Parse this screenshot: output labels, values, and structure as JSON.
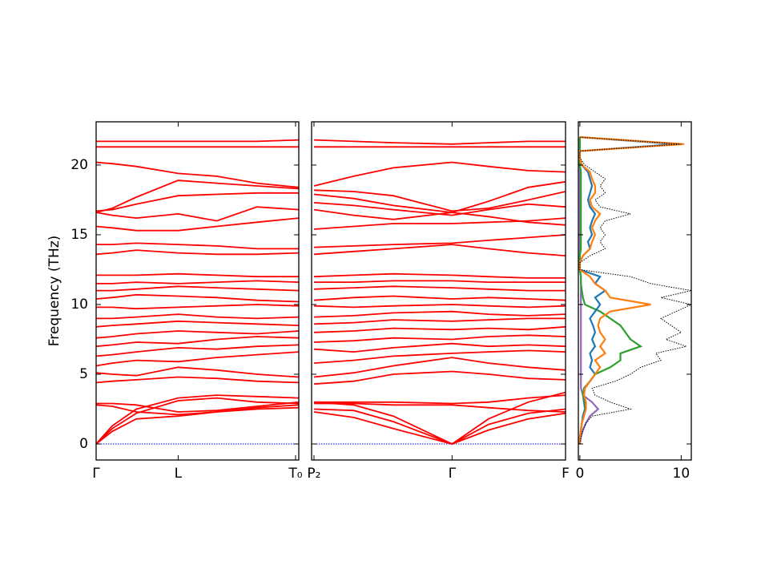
{
  "chart_data": [
    {
      "type": "bands",
      "ylabel": "Frequency (THz)",
      "color": "#ff0000",
      "hline": 0,
      "hline_color": "#0000ff",
      "xlim": [
        0,
        1.26
      ],
      "xticks": [
        {
          "value": 0,
          "label": "Γ"
        },
        {
          "value": 0.51,
          "label": "L"
        },
        {
          "value": 1.24,
          "label": "T₀"
        }
      ],
      "ylim": [
        -1.15,
        23.1
      ],
      "yticks": [
        0,
        5,
        10,
        15,
        20
      ],
      "ytick_labels": true,
      "x": [
        0,
        0.1,
        0.25,
        0.51,
        0.75,
        1.0,
        1.26
      ],
      "bands": [
        [
          0,
          0.9,
          1.8,
          2.0,
          2.3,
          2.6,
          2.8
        ],
        [
          0,
          1.1,
          2.2,
          3.1,
          3.3,
          3.0,
          2.9
        ],
        [
          0,
          1.3,
          2.5,
          3.3,
          3.5,
          3.4,
          3.3
        ],
        [
          2.8,
          2.7,
          2.3,
          2.1,
          2.3,
          2.5,
          2.6
        ],
        [
          2.9,
          2.9,
          2.8,
          2.3,
          2.4,
          2.7,
          3.0
        ],
        [
          4.4,
          4.5,
          4.6,
          4.8,
          4.7,
          4.5,
          4.4
        ],
        [
          5.1,
          5.0,
          4.9,
          5.5,
          5.3,
          5.0,
          4.8
        ],
        [
          5.6,
          5.8,
          6.0,
          5.9,
          6.2,
          6.4,
          6.6
        ],
        [
          6.3,
          6.4,
          6.6,
          6.9,
          6.8,
          7.0,
          7.1
        ],
        [
          7.0,
          7.1,
          7.3,
          7.2,
          7.5,
          7.7,
          7.6
        ],
        [
          7.6,
          7.7,
          7.9,
          8.1,
          8.0,
          7.9,
          8.1
        ],
        [
          8.4,
          8.5,
          8.6,
          8.8,
          8.7,
          8.6,
          8.5
        ],
        [
          9.0,
          9.0,
          9.1,
          9.3,
          9.1,
          9.0,
          9.1
        ],
        [
          9.8,
          9.8,
          9.7,
          9.8,
          9.9,
          10.0,
          9.9
        ],
        [
          10.4,
          10.5,
          10.7,
          10.6,
          10.5,
          10.3,
          10.2
        ],
        [
          11.0,
          11.0,
          11.1,
          11.3,
          11.2,
          11.1,
          11.0
        ],
        [
          11.5,
          11.5,
          11.6,
          11.5,
          11.6,
          11.7,
          11.6
        ],
        [
          12.1,
          12.1,
          12.1,
          12.2,
          12.1,
          12.0,
          12.0
        ],
        [
          13.6,
          13.7,
          13.9,
          13.7,
          13.6,
          13.6,
          13.7
        ],
        [
          14.3,
          14.3,
          14.4,
          14.3,
          14.2,
          14.0,
          14.0
        ],
        [
          15.6,
          15.5,
          15.3,
          15.3,
          15.6,
          15.9,
          16.2
        ],
        [
          16.6,
          16.4,
          16.2,
          16.5,
          16.0,
          17.0,
          16.8
        ],
        [
          16.7,
          16.8,
          17.2,
          17.8,
          17.9,
          18.0,
          18.0
        ],
        [
          16.6,
          16.9,
          17.7,
          18.9,
          18.7,
          18.5,
          18.3
        ],
        [
          20.2,
          20.1,
          19.9,
          19.4,
          19.2,
          18.7,
          18.4
        ],
        [
          21.3,
          21.3,
          21.3,
          21.3,
          21.3,
          21.3,
          21.3
        ],
        [
          21.7,
          21.7,
          21.7,
          21.7,
          21.7,
          21.7,
          21.8
        ]
      ]
    },
    {
      "type": "bands",
      "color": "#ff0000",
      "hline": 0,
      "hline_color": "#0000ff",
      "xlim": [
        -0.015,
        1.585
      ],
      "xticks": [
        {
          "value": 0,
          "label": "P₂"
        },
        {
          "value": 0.87,
          "label": "Γ"
        },
        {
          "value": 1.585,
          "label": "F"
        }
      ],
      "ylim": [
        -1.15,
        23.1
      ],
      "yticks": [
        0,
        5,
        10,
        15,
        20
      ],
      "ytick_labels": false,
      "x": [
        0,
        0.25,
        0.5,
        0.87,
        1.1,
        1.35,
        1.585
      ],
      "bands": [
        [
          2.3,
          1.9,
          1.1,
          0,
          1.0,
          1.8,
          2.2
        ],
        [
          2.5,
          2.4,
          1.6,
          0,
          1.4,
          2.2,
          2.5
        ],
        [
          3.0,
          2.8,
          2.0,
          0,
          1.8,
          3.0,
          3.7
        ],
        [
          2.9,
          2.9,
          2.8,
          2.8,
          2.6,
          2.4,
          2.3
        ],
        [
          3.0,
          3.0,
          3.0,
          2.9,
          3.0,
          3.3,
          3.5
        ],
        [
          4.3,
          4.5,
          5.0,
          5.2,
          5.0,
          4.7,
          4.6
        ],
        [
          4.8,
          5.1,
          5.6,
          6.2,
          5.8,
          5.5,
          5.3
        ],
        [
          5.8,
          6.0,
          6.3,
          6.5,
          6.6,
          6.7,
          6.6
        ],
        [
          6.8,
          6.6,
          6.9,
          7.2,
          7.0,
          7.1,
          7.0
        ],
        [
          7.3,
          7.4,
          7.6,
          7.5,
          7.7,
          7.8,
          7.7
        ],
        [
          8.0,
          8.1,
          8.3,
          8.2,
          8.3,
          8.2,
          8.4
        ],
        [
          8.6,
          8.7,
          8.9,
          8.8,
          8.9,
          9.0,
          9.0
        ],
        [
          9.1,
          9.2,
          9.4,
          9.5,
          9.3,
          9.2,
          9.3
        ],
        [
          9.9,
          9.8,
          9.9,
          10.0,
          9.9,
          9.8,
          9.9
        ],
        [
          10.3,
          10.5,
          10.6,
          10.4,
          10.5,
          10.4,
          10.3
        ],
        [
          11.1,
          11.2,
          11.3,
          11.2,
          11.1,
          11.0,
          11.0
        ],
        [
          11.6,
          11.6,
          11.7,
          11.7,
          11.6,
          11.6,
          11.6
        ],
        [
          12.0,
          12.1,
          12.2,
          12.1,
          12.0,
          11.9,
          11.9
        ],
        [
          13.6,
          13.8,
          14.0,
          14.3,
          14.0,
          13.7,
          13.5
        ],
        [
          14.1,
          14.2,
          14.3,
          14.4,
          14.6,
          14.8,
          15.0
        ],
        [
          15.4,
          15.6,
          15.8,
          15.8,
          15.9,
          16.0,
          16.2
        ],
        [
          16.8,
          16.4,
          16.1,
          16.6,
          16.3,
          15.9,
          15.7
        ],
        [
          17.3,
          17.1,
          16.8,
          16.4,
          16.8,
          17.2,
          17.0
        ],
        [
          17.9,
          17.6,
          17.1,
          16.6,
          17.4,
          18.4,
          18.8
        ],
        [
          18.2,
          18.1,
          17.8,
          16.7,
          16.9,
          17.5,
          18.1
        ],
        [
          18.5,
          19.2,
          19.8,
          20.2,
          19.9,
          19.6,
          19.5
        ],
        [
          21.3,
          21.3,
          21.3,
          21.3,
          21.3,
          21.3,
          21.3
        ],
        [
          21.8,
          21.7,
          21.6,
          21.5,
          21.6,
          21.7,
          21.7
        ]
      ]
    },
    {
      "type": "dos",
      "xlim": [
        -0.15,
        11.0
      ],
      "xticks": [
        0,
        10
      ],
      "ylim": [
        -1.15,
        23.1
      ],
      "yticks": [
        0,
        5,
        10,
        15,
        20
      ],
      "ytick_labels": false,
      "freq": [
        0,
        0.5,
        1,
        1.5,
        2,
        2.5,
        3,
        3.5,
        4,
        4.5,
        5,
        5.5,
        6,
        6.5,
        7,
        7.5,
        8,
        8.5,
        9,
        9.5,
        10,
        10.5,
        11,
        11.5,
        12,
        12.5,
        13,
        13.5,
        14,
        14.5,
        15,
        15.5,
        16,
        16.5,
        17,
        17.5,
        18,
        18.5,
        19,
        19.5,
        20,
        20.5,
        21,
        21.5,
        22
      ],
      "series": [
        {
          "color": "#9467bd",
          "style": "solid",
          "values": [
            0,
            0.1,
            0.3,
            0.6,
            1.0,
            1.8,
            1.2,
            0.3,
            0.1,
            0.1,
            0.1,
            0.1,
            0.1,
            0.1,
            0.1,
            0.1,
            0.1,
            0.1,
            0.1,
            0.1,
            0.1,
            0.1,
            0.1,
            0.1,
            0.1,
            0,
            0,
            0,
            0,
            0,
            0,
            0,
            0,
            0,
            0,
            0,
            0,
            0,
            0,
            0,
            0,
            0,
            0,
            0,
            0
          ]
        },
        {
          "color": "#2ca02c",
          "style": "solid",
          "values": [
            0,
            0,
            0.1,
            0.2,
            0.3,
            0.5,
            0.4,
            0.3,
            0.4,
            1.0,
            1.5,
            3.0,
            4.0,
            4.0,
            6.0,
            5.0,
            4.5,
            4.0,
            3.0,
            2.0,
            0.5,
            0.3,
            0.2,
            0.1,
            0.1,
            0,
            0,
            0,
            0.1,
            0.1,
            0.1,
            0.1,
            0.1,
            0.1,
            0.1,
            0.1,
            0.1,
            0.1,
            0.1,
            0.1,
            0,
            0,
            0,
            0,
            0
          ]
        },
        {
          "color": "#1f77b4",
          "style": "solid",
          "values": [
            0,
            0,
            0.1,
            0.2,
            0.3,
            0.5,
            0.5,
            0.4,
            0.5,
            1.0,
            1.5,
            1.0,
            1.2,
            1.0,
            1.5,
            1.2,
            1.5,
            1.3,
            1.0,
            1.5,
            2.0,
            1.5,
            2.5,
            1.5,
            2.0,
            0,
            0,
            0.3,
            1.0,
            0.8,
            1.2,
            1.0,
            1.2,
            1.5,
            1.0,
            0.8,
            1.0,
            1.2,
            1.0,
            0.8,
            0.2,
            0,
            0,
            9.5,
            0
          ]
        },
        {
          "color": "#ff7f0e",
          "style": "solid",
          "values": [
            0,
            0,
            0.1,
            0.2,
            0.4,
            0.6,
            0.6,
            0.4,
            0.5,
            1.0,
            1.5,
            2.0,
            1.5,
            2.5,
            2.0,
            2.5,
            2.0,
            1.8,
            2.0,
            3.0,
            7.0,
            3.0,
            2.5,
            1.5,
            1.0,
            0,
            0,
            0.3,
            1.0,
            1.2,
            1.5,
            1.2,
            1.5,
            2.0,
            1.2,
            1.0,
            1.5,
            1.5,
            1.2,
            1.0,
            0.2,
            0,
            0,
            10.3,
            0
          ]
        },
        {
          "color": "#000000",
          "style": "dotted",
          "values": [
            0,
            0.1,
            0.3,
            0.6,
            1.2,
            5.0,
            3.0,
            1.5,
            1.2,
            3.5,
            5.0,
            6.0,
            8.0,
            7.5,
            10.5,
            8.5,
            10.0,
            9.0,
            8.0,
            9.5,
            11.0,
            8.0,
            11.0,
            7.0,
            5.0,
            0,
            0,
            1.0,
            2.5,
            2.0,
            2.5,
            2.0,
            2.5,
            5.0,
            2.0,
            1.5,
            2.5,
            2.0,
            2.5,
            1.5,
            0.5,
            0,
            0,
            10.0,
            0
          ]
        }
      ]
    }
  ]
}
